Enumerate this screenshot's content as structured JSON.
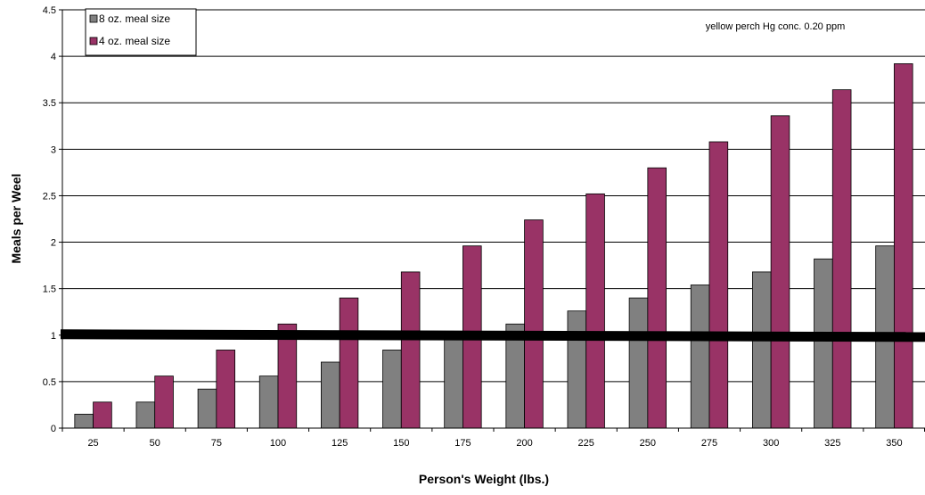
{
  "chart_data": {
    "type": "bar",
    "title": "",
    "xlabel": "Person's Weight (lbs.)",
    "ylabel": "Meals per Weel",
    "categories": [
      "25",
      "50",
      "75",
      "100",
      "125",
      "150",
      "175",
      "200",
      "225",
      "250",
      "275",
      "300",
      "325",
      "350"
    ],
    "series": [
      {
        "name": "8 oz. meal size",
        "color": "#808080",
        "values": [
          0.15,
          0.28,
          0.42,
          0.56,
          0.71,
          0.84,
          0.98,
          1.12,
          1.26,
          1.4,
          1.54,
          1.68,
          1.82,
          1.96
        ]
      },
      {
        "name": "4 oz. meal size",
        "color": "#993366",
        "values": [
          0.28,
          0.56,
          0.84,
          1.12,
          1.4,
          1.68,
          1.96,
          2.24,
          2.52,
          2.8,
          3.08,
          3.36,
          3.64,
          3.92
        ]
      }
    ],
    "ylim": [
      0,
      4.5
    ],
    "yticks": [
      "0",
      "0.5",
      "1",
      "1.5",
      "2",
      "2.5",
      "3",
      "3.5",
      "4",
      "4.5"
    ],
    "grid": true,
    "legend_position": "top-left",
    "reference_line": {
      "y": 1,
      "color": "#000000"
    },
    "annotation": "yellow perch Hg conc. 0.20 ppm"
  }
}
